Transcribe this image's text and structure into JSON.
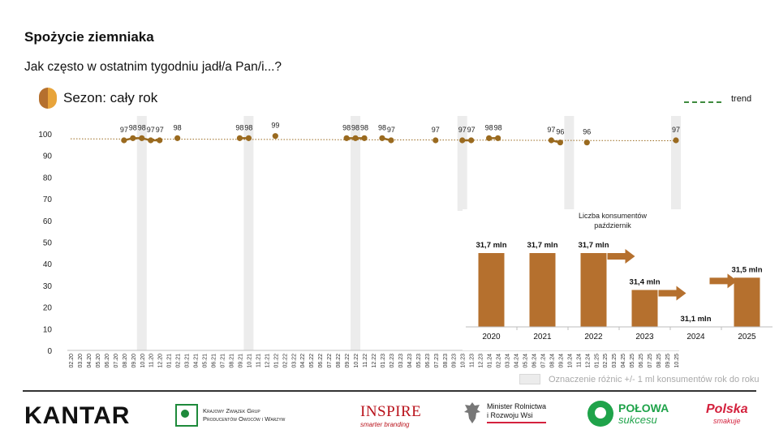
{
  "title": "Spożycie ziemniaka",
  "subtitle": "Jak często w ostatnim tygodniu jadł/a Pan/i...?",
  "season_label": "Sezon: cały rok",
  "trend_label": "trend",
  "note": "Oznaczenie różnic +/- 1 ml konsumentów rok do roku",
  "colors": {
    "series": "#9a6a1f",
    "bar": "#b5702e",
    "trend": "#3e8a3e",
    "highlight": "#ececec"
  },
  "chart_data": [
    {
      "type": "line",
      "ylim": [
        0,
        100
      ],
      "yticks": [
        0,
        10,
        20,
        30,
        40,
        50,
        60,
        70,
        80,
        90,
        100
      ],
      "x": [
        "02.20",
        "03.20",
        "04.20",
        "05.20",
        "06.20",
        "07.20",
        "08.20",
        "09.20",
        "10.20",
        "11.20",
        "12.20",
        "01.21",
        "02.21",
        "03.21",
        "04.21",
        "05.21",
        "06.21",
        "07.21",
        "08.21",
        "09.21",
        "10.21",
        "11.21",
        "12.21",
        "01.22",
        "02.22",
        "03.22",
        "04.22",
        "05.22",
        "06.22",
        "07.22",
        "08.22",
        "09.22",
        "10.22",
        "11.22",
        "12.22",
        "01.23",
        "02.23",
        "03.23",
        "04.23",
        "05.23",
        "06.23",
        "07.23",
        "08.23",
        "09.23",
        "10.23",
        "11.23",
        "12.23",
        "01.24",
        "02.24",
        "03.24",
        "04.24",
        "05.24",
        "06.24",
        "07.24",
        "08.24",
        "09.24",
        "10.24",
        "11.24",
        "12.24",
        "01.25",
        "02.25",
        "03.25",
        "04.25",
        "05.25",
        "06.25",
        "07.25",
        "08.25",
        "09.25",
        "10.25"
      ],
      "highlight_x": [
        "10.20",
        "10.21",
        "10.22",
        "10.23",
        "10.24",
        "10.25"
      ],
      "segments": [
        [
          {
            "x": "08.20",
            "y": 97
          },
          {
            "x": "09.20",
            "y": 98
          },
          {
            "x": "10.20",
            "y": 98
          },
          {
            "x": "11.20",
            "y": 97
          },
          {
            "x": "12.20",
            "y": 97
          }
        ],
        [
          {
            "x": "02.21",
            "y": 98
          }
        ],
        [
          {
            "x": "09.21",
            "y": 98
          },
          {
            "x": "10.21",
            "y": 98
          }
        ],
        [
          {
            "x": "01.22",
            "y": 99
          }
        ],
        [
          {
            "x": "09.22",
            "y": 98
          },
          {
            "x": "10.22",
            "y": 98
          },
          {
            "x": "11.22",
            "y": 98
          }
        ],
        [
          {
            "x": "01.23",
            "y": 98
          },
          {
            "x": "02.23",
            "y": 97
          }
        ],
        [
          {
            "x": "07.23",
            "y": 97
          }
        ],
        [
          {
            "x": "10.23",
            "y": 97
          },
          {
            "x": "11.23",
            "y": 97
          }
        ],
        [
          {
            "x": "01.24",
            "y": 98
          },
          {
            "x": "02.24",
            "y": 98
          }
        ],
        [
          {
            "x": "08.24",
            "y": 97
          },
          {
            "x": "09.24",
            "y": 96
          }
        ],
        [
          {
            "x": "12.24",
            "y": 96
          }
        ],
        [
          {
            "x": "10.25",
            "y": 97
          }
        ]
      ],
      "trend": [
        {
          "x": "02.20",
          "y": 97.7
        },
        {
          "x": "10.25",
          "y": 96.8
        }
      ],
      "legend": [
        "trend"
      ]
    },
    {
      "type": "bar",
      "title": "Liczba konsumentów październik",
      "categories": [
        "2020",
        "2021",
        "2022",
        "2023",
        "2024",
        "2025"
      ],
      "values": [
        31.7,
        31.7,
        31.7,
        31.4,
        31.1,
        31.5
      ],
      "labels": [
        "31,7 mln",
        "31,7 mln",
        "31,7 mln",
        "31,4 mln",
        "31,1 mln",
        "31,5 mln"
      ],
      "arrows_before": [
        "2023",
        "2024",
        "2025"
      ]
    }
  ],
  "logos": {
    "kantar": "KANTAR",
    "kzg_line1": "Krajowy Związek Grup",
    "kzg_line2": "Producentów Owoców i Warzyw",
    "inspire": "INSPIRE",
    "inspire_sub": "smarter branding",
    "minister_line1": "Minister Rolnictwa",
    "minister_line2": "i Rozwoju Wsi",
    "polowa_line1": "POŁOWA",
    "polowa_line2": "sukcesu",
    "polska_line1": "Polska",
    "polska_line2": "smakuje"
  }
}
